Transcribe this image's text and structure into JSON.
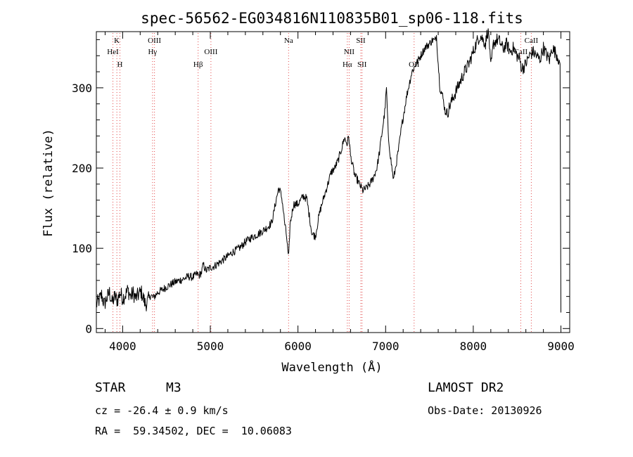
{
  "chart_data": {
    "type": "line",
    "title": "spec-56562-EG034816N110835B01_sp06-118.fits",
    "xlabel": "Wavelength (Å)",
    "ylabel": "Flux (relative)",
    "xlim": [
      3700,
      9100
    ],
    "ylim": [
      -5,
      370
    ],
    "x_ticks": [
      4000,
      5000,
      6000,
      7000,
      8000,
      9000
    ],
    "y_ticks": [
      0,
      100,
      200,
      300
    ],
    "grid": false,
    "series": [
      {
        "x": [
          3700,
          3730,
          3760,
          3790,
          3820,
          3850,
          3880,
          3910,
          3940,
          3970,
          4000,
          4030,
          4060,
          4090,
          4120,
          4150,
          4180,
          4210,
          4230,
          4260,
          4290,
          4320,
          4350,
          4400,
          4450,
          4500,
          4550,
          4600,
          4650,
          4700,
          4750,
          4800,
          4850,
          4870,
          4900,
          4920,
          4950,
          5000,
          5050,
          5100,
          5150,
          5200,
          5250,
          5300,
          5350,
          5400,
          5450,
          5500,
          5550,
          5600,
          5650,
          5700,
          5720,
          5750,
          5780,
          5800,
          5820,
          5850,
          5870,
          5893,
          5910,
          5950,
          6000,
          6030,
          6060,
          6100,
          6130,
          6160,
          6200,
          6230,
          6260,
          6300,
          6340,
          6380,
          6420,
          6460,
          6500,
          6530,
          6560,
          6580,
          6600,
          6620,
          6650,
          6680,
          6710,
          6740,
          6780,
          6820,
          6860,
          6900,
          6930,
          6960,
          6990,
          7010,
          7030,
          7060,
          7090,
          7120,
          7150,
          7180,
          7210,
          7240,
          7270,
          7300,
          7350,
          7400,
          7450,
          7500,
          7540,
          7560,
          7580,
          7600,
          7620,
          7650,
          7680,
          7710,
          7740,
          7780,
          7820,
          7860,
          7900,
          7950,
          8000,
          8050,
          8080,
          8110,
          8140,
          8160,
          8180,
          8190,
          8200,
          8230,
          8270,
          8300,
          8340,
          8380,
          8420,
          8460,
          8500,
          8530,
          8550,
          8570,
          8600,
          8640,
          8680,
          8720,
          8760,
          8800,
          8840,
          8870,
          8900,
          8930,
          8960,
          8990,
          9000
        ],
        "y": [
          30,
          35,
          42,
          30,
          38,
          45,
          32,
          40,
          35,
          45,
          38,
          42,
          48,
          40,
          44,
          38,
          42,
          46,
          40,
          30,
          35,
          42,
          38,
          45,
          48,
          52,
          55,
          58,
          60,
          62,
          65,
          64,
          68,
          66,
          70,
          80,
          72,
          76,
          78,
          82,
          86,
          90,
          95,
          98,
          102,
          108,
          112,
          115,
          118,
          122,
          126,
          132,
          142,
          160,
          175,
          170,
          160,
          130,
          115,
          85,
          130,
          155,
          155,
          160,
          165,
          162,
          140,
          118,
          115,
          135,
          150,
          165,
          180,
          195,
          200,
          210,
          225,
          238,
          230,
          240,
          215,
          205,
          190,
          185,
          178,
          172,
          175,
          180,
          188,
          200,
          220,
          245,
          270,
          300,
          240,
          210,
          185,
          205,
          225,
          250,
          270,
          290,
          305,
          320,
          330,
          340,
          350,
          355,
          360,
          358,
          365,
          330,
          300,
          290,
          270,
          270,
          280,
          290,
          300,
          310,
          320,
          330,
          345,
          360,
          365,
          360,
          355,
          370,
          365,
          340,
          325,
          355,
          360,
          358,
          348,
          355,
          345,
          350,
          340,
          335,
          325,
          325,
          330,
          340,
          345,
          340,
          335,
          350,
          340,
          335,
          350,
          345,
          340,
          330,
          20
        ]
      }
    ],
    "line_marks": [
      {
        "label": "K",
        "x": 3934,
        "row": 1
      },
      {
        "label": "HeI",
        "x": 3889,
        "row": 2
      },
      {
        "label": "H",
        "x": 3969,
        "row": 3
      },
      {
        "label": "OIII",
        "x": 4363,
        "row": 1
      },
      {
        "label": "Hγ",
        "x": 4341,
        "row": 2
      },
      {
        "label": "OIII",
        "x": 5007,
        "row": 2
      },
      {
        "label": "Hβ",
        "x": 4861,
        "row": 3
      },
      {
        "label": "Na",
        "x": 5893,
        "row": 1
      },
      {
        "label": "SII",
        "x": 6717,
        "row": 1
      },
      {
        "label": "NII",
        "x": 6584,
        "row": 2
      },
      {
        "label": "Hα",
        "x": 6563,
        "row": 3
      },
      {
        "label": "SII",
        "x": 6731,
        "row": 3
      },
      {
        "label": "OII",
        "x": 7325,
        "row": 3
      },
      {
        "label": "CaII",
        "x": 8662,
        "row": 1
      },
      {
        "label": "CaII",
        "x": 8542,
        "row": 2
      }
    ]
  },
  "info": {
    "class_label": "STAR",
    "subclass_label": "M3",
    "survey": "LAMOST DR2",
    "cz": "cz = -26.4 ± 0.9 km/s",
    "obs_date": "Obs-Date: 20130926",
    "coords": "RA =  59.34502, DEC =  10.06083"
  }
}
